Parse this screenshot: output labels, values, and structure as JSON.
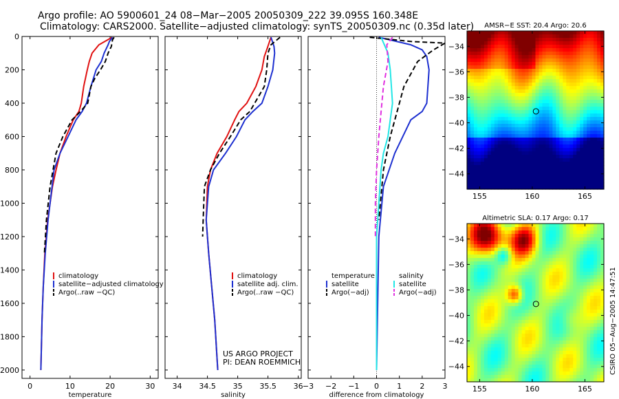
{
  "header": {
    "line1": "Argo profile: AO 5900601_24 08−Mar−2005 20050309_222 39.095S 160.348E",
    "line2": "Climatology: CARS2000. Satellite−adjusted climatology: synTS_20050309.nc (0.35d later)"
  },
  "side_label": "CSIRO 05−Aug−2005 14:47:51",
  "project": {
    "line1": "US ARGO PROJECT",
    "line2": "PI: DEAN ROEMMICH"
  },
  "colors": {
    "red": "#e01010",
    "blue": "#1c2fd0",
    "black": "#000000",
    "cyan": "#22e6e6",
    "magenta": "#e030e0"
  },
  "chart_data": [
    {
      "type": "line",
      "xlabel": "temperature",
      "xlim": [
        -2,
        32
      ],
      "ylim": [
        2050,
        0
      ],
      "xticks": [
        0,
        10,
        20,
        30
      ],
      "yticks": [
        0,
        200,
        400,
        600,
        800,
        1000,
        1200,
        1400,
        1600,
        1800,
        2000
      ],
      "legend": {
        "placement": "lower-center",
        "entries": [
          "climatology",
          "satellite−adjusted climatology",
          "Argo(..raw −QC)"
        ]
      },
      "series": [
        {
          "name": "climatology",
          "color": "red",
          "dash": "",
          "x": [
            20.5,
            17.2,
            15.5,
            14.8,
            14.3,
            13.4,
            12.8,
            12.2,
            10.8,
            9.0,
            7.5,
            6.5,
            5.6,
            4.4,
            3.7,
            3.3,
            3.0,
            2.7
          ],
          "y": [
            5,
            50,
            100,
            150,
            200,
            300,
            400,
            450,
            500,
            600,
            700,
            800,
            900,
            1100,
            1300,
            1500,
            1700,
            2000
          ]
        },
        {
          "name": "satellite−adjusted climatology",
          "color": "blue",
          "dash": "",
          "x": [
            20.6,
            19.8,
            19.5,
            18.5,
            17.8,
            16.5,
            15.2,
            14.1,
            13.0,
            11.5,
            9.5,
            7.5,
            6.0,
            4.5,
            3.8,
            3.3,
            3.0,
            2.7
          ],
          "y": [
            5,
            30,
            50,
            100,
            150,
            200,
            300,
            400,
            450,
            500,
            600,
            700,
            800,
            1100,
            1300,
            1500,
            1700,
            2000
          ]
        },
        {
          "name": "Argo(..raw −QC)",
          "color": "black",
          "dash": "7,4",
          "x": [
            21.0,
            20.6,
            20.3,
            19.5,
            18.8,
            17.6,
            16.2,
            15.2,
            14.4,
            12.6,
            10.5,
            8.2,
            6.5,
            5.0,
            4.1,
            3.6
          ],
          "y": [
            5,
            20,
            60,
            100,
            150,
            200,
            250,
            300,
            400,
            450,
            500,
            600,
            700,
            900,
            1100,
            1300
          ]
        }
      ]
    },
    {
      "type": "line",
      "xlabel": "salinity",
      "xlim": [
        33.8,
        36.05
      ],
      "ylim": [
        2050,
        0
      ],
      "xticks": [
        34,
        34.5,
        35,
        35.5,
        36
      ],
      "yticks": [
        0,
        200,
        400,
        600,
        800,
        1000,
        1200,
        1400,
        1600,
        1800,
        2000
      ],
      "legend": {
        "placement": "lower-center",
        "entries": [
          "climatology",
          "satellite adj. clim.",
          "Argo(..raw −QC)"
        ]
      },
      "series": [
        {
          "name": "climatology",
          "color": "red",
          "dash": "",
          "x": [
            35.55,
            35.48,
            35.44,
            35.4,
            35.3,
            35.15,
            35.02,
            34.95,
            34.82,
            34.66,
            34.55,
            34.5,
            34.48,
            34.52,
            34.57,
            34.62,
            34.67
          ],
          "y": [
            5,
            80,
            120,
            200,
            300,
            400,
            450,
            500,
            600,
            700,
            800,
            900,
            1100,
            1300,
            1500,
            1700,
            2000
          ]
        },
        {
          "name": "satellite adj. clim.",
          "color": "blue",
          "dash": "",
          "x": [
            35.55,
            35.6,
            35.61,
            35.58,
            35.5,
            35.4,
            35.25,
            35.12,
            34.98,
            34.8,
            34.6,
            34.52,
            34.48,
            34.52,
            34.57,
            34.62,
            34.67
          ],
          "y": [
            5,
            60,
            100,
            200,
            300,
            400,
            450,
            500,
            600,
            700,
            800,
            900,
            1100,
            1300,
            1500,
            1700,
            2000
          ]
        },
        {
          "name": "Argo(..raw −QC)",
          "color": "black",
          "dash": "7,4",
          "x": [
            35.7,
            35.55,
            35.5,
            35.48,
            35.44,
            35.36,
            35.2,
            35.05,
            34.88,
            34.7,
            34.55,
            34.45,
            34.43,
            34.42
          ],
          "y": [
            5,
            50,
            100,
            200,
            300,
            350,
            450,
            500,
            600,
            700,
            800,
            900,
            1100,
            1200
          ]
        }
      ]
    },
    {
      "type": "line",
      "xlabel": "difference from climatology",
      "xlim": [
        -3,
        3
      ],
      "ylim": [
        2050,
        0
      ],
      "xticks": [
        -3,
        -2,
        -1,
        0,
        1,
        2,
        3
      ],
      "yticks": [
        0,
        200,
        400,
        600,
        800,
        1000,
        1200,
        1400,
        1600,
        1800,
        2000
      ],
      "legend": {
        "placement": "lower-center",
        "groups": [
          {
            "title": "temperature",
            "entries": [
              "satellite",
              "Argo(−adj)"
            ]
          },
          {
            "title": "salinity",
            "entries": [
              "satellite",
              "Argo(−adj)"
            ]
          }
        ]
      },
      "series": [
        {
          "name": "temperature satellite",
          "color": "blue",
          "dash": "",
          "x": [
            0.1,
            1.5,
            2.0,
            2.2,
            2.3,
            2.2,
            2.0,
            1.5,
            0.8,
            0.3,
            0.1,
            0.0
          ],
          "y": [
            5,
            50,
            80,
            120,
            200,
            400,
            450,
            500,
            700,
            900,
            1200,
            2000
          ]
        },
        {
          "name": "temperature Argo(−adj)",
          "color": "black",
          "dash": "7,4",
          "x": [
            -0.3,
            1.5,
            3.0,
            2.5,
            1.8,
            1.2,
            0.9,
            0.6,
            0.3,
            0.1
          ],
          "y": [
            5,
            30,
            40,
            80,
            150,
            300,
            450,
            600,
            800,
            1100
          ]
        },
        {
          "name": "salinity satellite",
          "color": "cyan",
          "dash": "",
          "x": [
            0.2,
            0.5,
            0.6,
            0.7,
            0.5,
            0.3,
            0.2,
            0.1,
            0.0,
            0.0,
            0.0
          ],
          "y": [
            5,
            100,
            200,
            400,
            600,
            700,
            800,
            1000,
            1200,
            1500,
            2000
          ]
        },
        {
          "name": "salinity Argo(−adj)",
          "color": "magenta",
          "dash": "7,4",
          "x": [
            0.7,
            0.45,
            0.5,
            0.3,
            0.2,
            0.1,
            0.0,
            -0.05,
            -0.05,
            -0.05
          ],
          "y": [
            5,
            50,
            150,
            300,
            450,
            600,
            800,
            1000,
            1100,
            1200
          ]
        }
      ]
    },
    {
      "type": "heatmap",
      "title": "AMSR−E SST: 20.4 Argo: 20.6",
      "xlim": [
        153.8,
        166.8
      ],
      "ylim": [
        -45.2,
        -32.8
      ],
      "xticks": [
        155,
        160,
        165
      ],
      "yticks": [
        -34,
        -36,
        -38,
        -40,
        -42,
        -44
      ],
      "marker": {
        "lon": 160.35,
        "lat": -39.1
      }
    },
    {
      "type": "heatmap",
      "title": "Altimetric SLA: 0.17 Argo: 0.17",
      "xlim": [
        153.8,
        166.8
      ],
      "ylim": [
        -45.2,
        -32.8
      ],
      "xticks": [
        155,
        160,
        165
      ],
      "yticks": [
        -34,
        -36,
        -38,
        -40,
        -42,
        -44
      ],
      "marker": {
        "lon": 160.35,
        "lat": -39.1
      }
    }
  ]
}
